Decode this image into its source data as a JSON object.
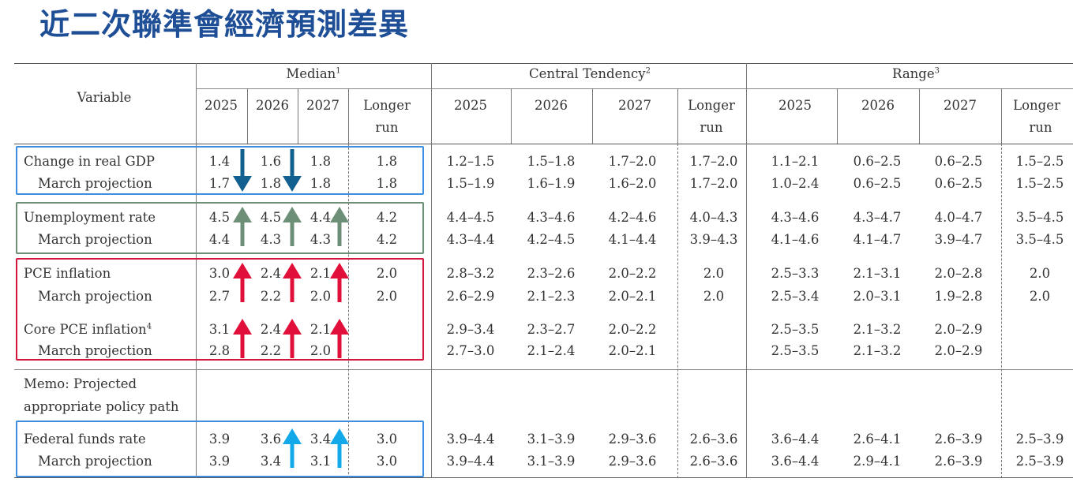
{
  "title": "近二次聯準會經濟預測差異",
  "header": {
    "variable": "Variable",
    "groups": [
      {
        "label": "Median",
        "sup": "1"
      },
      {
        "label": "Central Tendency",
        "sup": "2"
      },
      {
        "label": "Range",
        "sup": "3"
      }
    ],
    "years": [
      "2025",
      "2026",
      "2027"
    ],
    "longer_run_line1": "Longer",
    "longer_run_line2": "run"
  },
  "rows": [
    {
      "id": "gdp",
      "label": "Change in real GDP",
      "label_sup": "",
      "median": [
        "1.4",
        "1.6",
        "1.8",
        "1.8"
      ],
      "central": [
        "1.2–1.5",
        "1.5–1.8",
        "1.7–2.0",
        "1.7–2.0"
      ],
      "range": [
        "1.1–2.1",
        "0.6–2.5",
        "0.6–2.5",
        "1.5–2.5"
      ]
    },
    {
      "id": "gdp-march",
      "label": "March projection",
      "label_sup": "",
      "median": [
        "1.7",
        "1.8",
        "1.8",
        "1.8"
      ],
      "central": [
        "1.5–1.9",
        "1.6–1.9",
        "1.6–2.0",
        "1.7–2.0"
      ],
      "range": [
        "1.0–2.4",
        "0.6–2.5",
        "0.6–2.5",
        "1.5–2.5"
      ]
    },
    {
      "id": "unemp",
      "label": "Unemployment rate",
      "label_sup": "",
      "median": [
        "4.5",
        "4.5",
        "4.4",
        "4.2"
      ],
      "central": [
        "4.4–4.5",
        "4.3–4.6",
        "4.2–4.6",
        "4.0–4.3"
      ],
      "range": [
        "4.3–4.6",
        "4.3–4.7",
        "4.0–4.7",
        "3.5–4.5"
      ]
    },
    {
      "id": "unemp-march",
      "label": "March projection",
      "label_sup": "",
      "median": [
        "4.4",
        "4.3",
        "4.3",
        "4.2"
      ],
      "central": [
        "4.3–4.4",
        "4.2–4.5",
        "4.1–4.4",
        "3.9–4.3"
      ],
      "range": [
        "4.1–4.6",
        "4.1–4.7",
        "3.9–4.7",
        "3.5–4.5"
      ]
    },
    {
      "id": "pce",
      "label": "PCE inflation",
      "label_sup": "",
      "median": [
        "3.0",
        "2.4",
        "2.1",
        "2.0"
      ],
      "central": [
        "2.8–3.2",
        "2.3–2.6",
        "2.0–2.2",
        "2.0"
      ],
      "range": [
        "2.5–3.3",
        "2.1–3.1",
        "2.0–2.8",
        "2.0"
      ]
    },
    {
      "id": "pce-march",
      "label": "March projection",
      "label_sup": "",
      "median": [
        "2.7",
        "2.2",
        "2.0",
        "2.0"
      ],
      "central": [
        "2.6–2.9",
        "2.1–2.3",
        "2.0–2.1",
        "2.0"
      ],
      "range": [
        "2.5–3.4",
        "2.0–3.1",
        "1.9–2.8",
        "2.0"
      ]
    },
    {
      "id": "core",
      "label": "Core PCE inflation",
      "label_sup": "4",
      "median": [
        "3.1",
        "2.4",
        "2.1",
        ""
      ],
      "central": [
        "2.9–3.4",
        "2.3–2.7",
        "2.0–2.2",
        ""
      ],
      "range": [
        "2.5–3.5",
        "2.1–3.2",
        "2.0–2.9",
        ""
      ]
    },
    {
      "id": "core-march",
      "label": "March projection",
      "label_sup": "",
      "median": [
        "2.8",
        "2.2",
        "2.0",
        ""
      ],
      "central": [
        "2.7–3.0",
        "2.1–2.4",
        "2.0–2.1",
        ""
      ],
      "range": [
        "2.5–3.5",
        "2.1–3.2",
        "2.0–2.9",
        ""
      ]
    },
    {
      "id": "fed",
      "label": "Federal funds rate",
      "label_sup": "",
      "median": [
        "3.9",
        "3.6",
        "3.4",
        "3.0"
      ],
      "central": [
        "3.9–4.4",
        "3.1–3.9",
        "2.9–3.6",
        "2.6–3.6"
      ],
      "range": [
        "3.6–4.4",
        "2.6–4.1",
        "2.6–3.9",
        "2.5–3.9"
      ]
    },
    {
      "id": "fed-march",
      "label": "March projection",
      "label_sup": "",
      "median": [
        "3.9",
        "3.4",
        "3.1",
        "3.0"
      ],
      "central": [
        "3.9–4.4",
        "3.1–3.9",
        "2.9–3.6",
        "2.6–3.6"
      ],
      "range": [
        "3.6–4.4",
        "2.9–4.1",
        "2.6–3.9",
        "2.5–3.9"
      ]
    }
  ],
  "memo": {
    "line1": "Memo: Projected",
    "line2": "appropriate policy path"
  },
  "colors": {
    "title": "#1e4e96",
    "gdp_box": "#3d8ee0",
    "unemp_box": "#6e8f77",
    "inflation_box": "#d4143c",
    "fed_box": "#3d8ee0",
    "arrow_down": "#12608f",
    "arrow_green": "#6e8f77",
    "arrow_red": "#e0103a",
    "arrow_cyan": "#12a8ea"
  },
  "arrows": [
    {
      "row": "gdp",
      "col": "2025",
      "direction": "down",
      "color": "arrow_down"
    },
    {
      "row": "gdp",
      "col": "2026",
      "direction": "down",
      "color": "arrow_down"
    },
    {
      "row": "unemp",
      "col": "2025",
      "direction": "up",
      "color": "arrow_green"
    },
    {
      "row": "unemp",
      "col": "2026",
      "direction": "up",
      "color": "arrow_green"
    },
    {
      "row": "unemp",
      "col": "2027",
      "direction": "up",
      "color": "arrow_green"
    },
    {
      "row": "pce",
      "col": "2025",
      "direction": "up",
      "color": "arrow_red"
    },
    {
      "row": "pce",
      "col": "2026",
      "direction": "up",
      "color": "arrow_red"
    },
    {
      "row": "pce",
      "col": "2027",
      "direction": "up",
      "color": "arrow_red"
    },
    {
      "row": "core",
      "col": "2025",
      "direction": "up",
      "color": "arrow_red"
    },
    {
      "row": "core",
      "col": "2026",
      "direction": "up",
      "color": "arrow_red"
    },
    {
      "row": "core",
      "col": "2027",
      "direction": "up",
      "color": "arrow_red"
    },
    {
      "row": "fed",
      "col": "2026",
      "direction": "up",
      "color": "arrow_cyan"
    },
    {
      "row": "fed",
      "col": "2027",
      "direction": "up",
      "color": "arrow_cyan"
    }
  ]
}
